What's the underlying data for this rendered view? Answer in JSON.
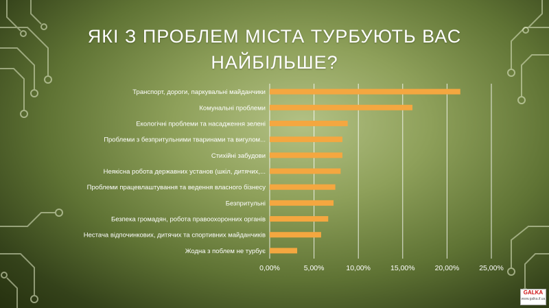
{
  "title_lines": [
    "ЯКІ З ПРОБЛЕМ МІСТА ТУРБУЮТЬ ВАС",
    "НАЙБІЛЬШЕ?"
  ],
  "logo_text": "GALKA",
  "logo_subtext": "www.galka.if.ua",
  "colors": {
    "bar": "#f4a740",
    "grid": "#ffffff",
    "text": "#ffffff"
  },
  "chart_data": {
    "type": "bar",
    "orientation": "horizontal",
    "title": "ЯКІ З ПРОБЛЕМ МІСТА ТУРБУЮТЬ ВАС НАЙБІЛЬШЕ?",
    "categories": [
      "Транспорт, дороги, паркувальні майданчики",
      "Комунальні проблеми",
      "Екологічні проблеми та насадження зелені",
      "Проблеми з безпритульними тваринами та вигулом...",
      "Стихійні забудови",
      "Неякісна робота державних установ (шкіл, дитячих,...",
      "Проблеми працевлаштування та ведення власного бізнесу",
      "Безпритульні",
      "Безпека громадян, робота правоохоронних органів",
      "Нестача відпочинкових, дитячих та спортивних майданчиків",
      "Жодна з поблем не турбує"
    ],
    "values": [
      21.5,
      16.1,
      8.8,
      8.2,
      8.2,
      8.0,
      7.4,
      7.2,
      6.6,
      5.8,
      3.1
    ],
    "xlim": [
      0,
      25
    ],
    "ticks": [
      0,
      5,
      10,
      15,
      20,
      25
    ],
    "tick_labels": [
      "0,00%",
      "5,00%",
      "10,00%",
      "15,00%",
      "20,00%",
      "25,00%"
    ],
    "grid": true,
    "legend": "none"
  }
}
